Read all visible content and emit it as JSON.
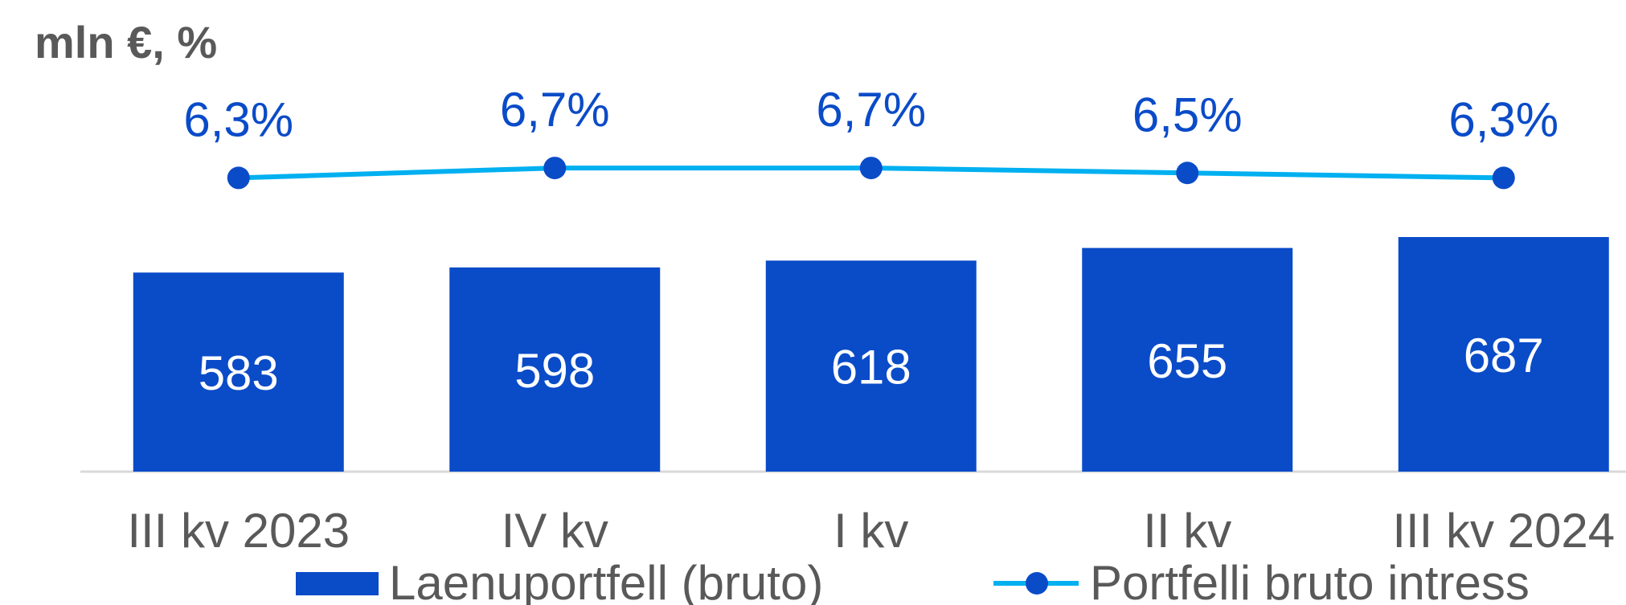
{
  "chart_data": {
    "type": "bar",
    "title": "mln €, %",
    "categories": [
      "III kv 2023",
      "IV kv",
      "I kv",
      "II kv",
      "III kv 2024"
    ],
    "series": [
      {
        "name": "Laenuportfell (bruto)",
        "type": "bar",
        "color": "#0a4bc8",
        "values": [
          583,
          598,
          618,
          655,
          687
        ]
      },
      {
        "name": "Portfelli bruto intress",
        "type": "line",
        "axis": "y2",
        "color": "#00b0f0",
        "marker_color": "#0a4bc8",
        "values": [
          6.3,
          6.7,
          6.7,
          6.5,
          6.3
        ],
        "value_labels": [
          "6,3%",
          "6,7%",
          "6,7%",
          "6,5%",
          "6,3%"
        ]
      }
    ],
    "ylim": [
      0,
      1200
    ],
    "y2lim": [
      -5.6,
      11
    ],
    "legend": "bottom"
  }
}
